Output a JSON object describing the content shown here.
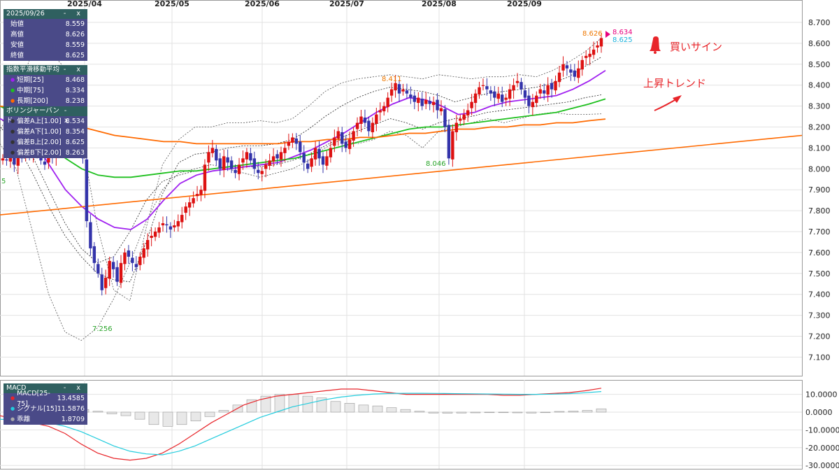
{
  "info_panel": {
    "date": "2025/09/26",
    "rows": [
      {
        "label": "始値",
        "value": "8.559"
      },
      {
        "label": "高値",
        "value": "8.626"
      },
      {
        "label": "安値",
        "value": "8.559"
      },
      {
        "label": "終値",
        "value": "8.625"
      }
    ]
  },
  "ema_panel": {
    "title": "指数平滑移動平均",
    "rows": [
      {
        "label": "短期[25]",
        "value": "8.468",
        "color": "#a020f0"
      },
      {
        "label": "中期[75]",
        "value": "8.334",
        "color": "#1fc01f"
      },
      {
        "label": "長期[200]",
        "value": "8.238",
        "color": "#ff6a00"
      }
    ]
  },
  "bb_panel": {
    "title": "ボリンジャーバンド",
    "rows": [
      {
        "label": "偏差A上[1.00]",
        "value": "8.534"
      },
      {
        "label": "偏差A下[1.00]",
        "value": "8.354"
      },
      {
        "label": "偏差B上[2.00]",
        "value": "8.625"
      },
      {
        "label": "偏差B下[2.00]",
        "value": "8.263"
      }
    ]
  },
  "macd_panel": {
    "title": "MACD",
    "rows": [
      {
        "label": "MACD[25-75]",
        "value": "13.4585",
        "color": "#e8252a"
      },
      {
        "label": "シグナル[15]",
        "value": "11.5876",
        "color": "#22ccdd"
      },
      {
        "label": "乖離",
        "value": "1.8709",
        "color": "#aaaaaa"
      }
    ]
  },
  "panel_controls": "- x",
  "annotations": {
    "buy_signal": "買いサイン",
    "uptrend": "上昇トレンド"
  },
  "chart_data": [
    {
      "type": "candlestick",
      "x_tick_labels": [
        "2025/04",
        "2025/05",
        "2025/06",
        "2025/07",
        "2025/08",
        "2025/09"
      ],
      "y_tick_labels": [
        "8.700",
        "8.600",
        "8.500",
        "8.400",
        "8.300",
        "8.200",
        "8.100",
        "8.000",
        "7.900",
        "7.800",
        "7.700",
        "7.600",
        "7.500",
        "7.400",
        "7.300",
        "7.200",
        "7.100"
      ],
      "ylim": [
        7.05,
        8.78
      ],
      "grid": true,
      "candle_up_color": "#dd1111",
      "candle_down_color": "#3333aa",
      "closes": [
        8.05,
        8.04,
        8.06,
        8.02,
        8.08,
        8.05,
        8.1,
        8.07,
        8.12,
        8.09,
        8.04,
        8.02,
        8.08,
        8.06,
        8.1,
        8.18,
        8.22,
        8.2,
        8.15,
        8.12,
        8.1,
        8.05,
        7.75,
        7.62,
        7.55,
        7.5,
        7.42,
        7.48,
        7.56,
        7.52,
        7.46,
        7.55,
        7.6,
        7.58,
        7.55,
        7.53,
        7.58,
        7.62,
        7.66,
        7.68,
        7.7,
        7.72,
        7.74,
        7.73,
        7.71,
        7.73,
        7.75,
        7.78,
        7.82,
        7.84,
        7.86,
        7.88,
        7.9,
        8.02,
        8.08,
        8.1,
        8.04,
        8.0,
        8.06,
        8.03,
        8.0,
        7.98,
        8.02,
        8.05,
        8.08,
        8.04,
        8.0,
        7.98,
        7.99,
        8.02,
        8.04,
        8.06,
        8.05,
        8.08,
        8.1,
        8.13,
        8.15,
        8.12,
        8.08,
        8.03,
        8.0,
        8.05,
        8.1,
        8.05,
        8.02,
        8.06,
        8.1,
        8.15,
        8.18,
        8.12,
        8.1,
        8.14,
        8.18,
        8.22,
        8.25,
        8.22,
        8.18,
        8.22,
        8.26,
        8.28,
        8.3,
        8.34,
        8.38,
        8.41,
        8.36,
        8.38,
        8.36,
        8.34,
        8.32,
        8.34,
        8.3,
        8.33,
        8.31,
        8.32,
        8.28,
        8.29,
        8.2,
        8.05,
        8.18,
        8.22,
        8.24,
        8.26,
        8.28,
        8.32,
        8.36,
        8.39,
        8.4,
        8.38,
        8.36,
        8.34,
        8.36,
        8.32,
        8.34,
        8.38,
        8.4,
        8.42,
        8.38,
        8.34,
        8.3,
        8.32,
        8.35,
        8.38,
        8.36,
        8.4,
        8.38,
        8.42,
        8.46,
        8.5,
        8.48,
        8.46,
        8.44,
        8.48,
        8.52,
        8.54,
        8.55,
        8.57,
        8.59,
        8.625
      ],
      "high_label": "7.256",
      "markers": [
        {
          "label": "7.256",
          "color": "#2aa52a"
        },
        {
          "label": "8.046",
          "color": "#2aa52a"
        },
        {
          "label": "8.411",
          "color": "#ee7700"
        },
        {
          "label": "8.626",
          "color": "#ee7700"
        },
        {
          "label": "8.634",
          "color": "#e8007f"
        },
        {
          "label": "8.625",
          "color": "#1ab2dd"
        }
      ],
      "left_edge_label": "5",
      "series": [
        {
          "name": "短期[25]",
          "color": "#a020f0",
          "values": [
            8.24,
            8.2,
            8.14,
            8.02,
            7.9,
            7.82,
            7.76,
            7.72,
            7.71,
            7.76,
            7.85,
            7.93,
            7.97,
            7.99,
            8.0,
            8.01,
            8.02,
            8.03,
            8.06,
            8.09,
            8.13,
            8.17,
            8.22,
            8.27,
            8.31,
            8.34,
            8.33,
            8.3,
            8.26,
            8.27,
            8.3,
            8.32,
            8.33,
            8.34,
            8.35,
            8.38,
            8.42,
            8.47
          ]
        },
        {
          "name": "中期[75]",
          "color": "#1fc01f",
          "values": [
            8.3,
            8.26,
            8.2,
            8.12,
            8.05,
            8.0,
            7.97,
            7.96,
            7.96,
            7.97,
            7.98,
            7.99,
            7.99,
            8.0,
            8.01,
            8.02,
            8.03,
            8.04,
            8.05,
            8.07,
            8.09,
            8.11,
            8.13,
            8.15,
            8.17,
            8.19,
            8.2,
            8.2,
            8.21,
            8.22,
            8.23,
            8.24,
            8.25,
            8.26,
            8.27,
            8.29,
            8.31,
            8.334
          ]
        },
        {
          "name": "長期[200]",
          "color": "#ff6a00",
          "values": [
            8.3,
            8.29,
            8.27,
            8.25,
            8.23,
            8.2,
            8.18,
            8.16,
            8.15,
            8.14,
            8.13,
            8.13,
            8.12,
            8.12,
            8.12,
            8.12,
            8.12,
            8.12,
            8.13,
            8.13,
            8.14,
            8.14,
            8.15,
            8.15,
            8.16,
            8.17,
            8.17,
            8.18,
            8.19,
            8.19,
            8.2,
            8.2,
            8.21,
            8.21,
            8.22,
            8.22,
            8.23,
            8.238
          ]
        },
        {
          "name": "trend",
          "color": "#ff6a00",
          "values": [
            7.78,
            8.16
          ]
        },
        {
          "name": "偏差B上[2.00]",
          "color": "#555555",
          "values": [
            8.18,
            8.35,
            8.56,
            8.57,
            8.48,
            8.15,
            7.72,
            7.42,
            7.37,
            7.72,
            8.02,
            8.14,
            8.2,
            8.2,
            8.22,
            8.22,
            8.23,
            8.22,
            8.24,
            8.3,
            8.37,
            8.41,
            8.43,
            8.44,
            8.45,
            8.44,
            8.43,
            8.45,
            8.44,
            8.43,
            8.44,
            8.44,
            8.45,
            8.44,
            8.47,
            8.51,
            8.56,
            8.625
          ]
        },
        {
          "name": "偏差B下[2.00]",
          "color": "#555555",
          "values": [
            8.12,
            8.0,
            7.7,
            7.4,
            7.22,
            7.18,
            7.24,
            7.38,
            7.55,
            7.75,
            7.9,
            7.98,
            8.0,
            8.02,
            8.0,
            7.98,
            7.96,
            7.98,
            8.0,
            8.04,
            8.1,
            8.14,
            8.12,
            8.14,
            8.18,
            8.16,
            8.1,
            8.18,
            8.2,
            8.22,
            8.24,
            8.22,
            8.24,
            8.26,
            8.27,
            8.26,
            8.26,
            8.263
          ]
        },
        {
          "name": "偏差A上[1.00]",
          "color": "#222222",
          "values": [
            8.2,
            8.12,
            7.98,
            7.82,
            7.68,
            7.58,
            7.5,
            7.47,
            7.46,
            7.65,
            7.88,
            8.03,
            8.07,
            8.08,
            8.1,
            8.11,
            8.11,
            8.12,
            8.14,
            8.19,
            8.25,
            8.3,
            8.34,
            8.37,
            8.39,
            8.38,
            8.37,
            8.35,
            8.32,
            8.34,
            8.36,
            8.37,
            8.38,
            8.39,
            8.41,
            8.44,
            8.49,
            8.534
          ]
        },
        {
          "name": "偏差A下[1.00]",
          "color": "#222222",
          "values": [
            8.24,
            8.18,
            8.06,
            7.9,
            7.74,
            7.62,
            7.55,
            7.58,
            7.7,
            7.85,
            7.94,
            7.97,
            7.99,
            8.0,
            8.01,
            8.01,
            8.01,
            8.02,
            8.04,
            8.07,
            8.11,
            8.15,
            8.18,
            8.21,
            8.24,
            8.22,
            8.19,
            8.22,
            8.24,
            8.25,
            8.27,
            8.28,
            8.29,
            8.3,
            8.31,
            8.32,
            8.34,
            8.354
          ]
        }
      ]
    },
    {
      "type": "macd",
      "y_tick_labels": [
        "10.0000",
        "0.0000",
        "-10.0000",
        "-20.0000",
        "-30.0000"
      ],
      "ylim": [
        -32,
        17
      ],
      "series": [
        {
          "name": "MACD[25-75]",
          "color": "#e8252a",
          "values": [
            -2,
            -4,
            -6,
            -8,
            -12,
            -18,
            -23,
            -26,
            -27,
            -26,
            -23,
            -18,
            -12,
            -6,
            -1,
            4,
            7,
            9,
            10,
            11,
            12,
            13,
            13,
            12,
            11,
            10,
            10,
            10,
            10,
            10,
            10,
            9.5,
            9.5,
            10,
            10.5,
            11,
            12,
            13.4585
          ]
        },
        {
          "name": "シグナル[15]",
          "color": "#22ccdd",
          "values": [
            -4,
            -4.5,
            -5,
            -6,
            -8,
            -11,
            -15,
            -19,
            -22,
            -23.5,
            -24,
            -22,
            -19,
            -15,
            -11,
            -7,
            -3,
            0,
            3,
            5,
            7,
            8.5,
            9.5,
            10.2,
            10.5,
            10.6,
            10.6,
            10.5,
            10.4,
            10.3,
            10.2,
            10.1,
            10.0,
            10.0,
            10.1,
            10.4,
            10.9,
            11.5876
          ]
        },
        {
          "name": "乖離",
          "color": "#aaaaaa",
          "values": [
            1.5,
            0.5,
            -1,
            -2,
            -4,
            -7,
            -8,
            -7,
            -5,
            -2.5,
            1,
            4,
            7,
            9,
            10,
            10,
            9,
            8,
            6,
            5,
            4,
            3.5,
            2.5,
            1.5,
            0.5,
            -0.5,
            -0.6,
            -0.5,
            -0.4,
            -0.3,
            -0.2,
            -0.4,
            -0.5,
            0,
            0.4,
            0.6,
            1.0,
            1.8709
          ]
        }
      ]
    }
  ]
}
